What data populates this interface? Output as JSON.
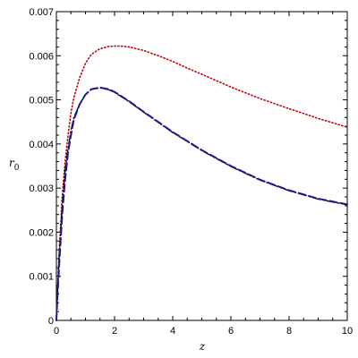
{
  "chart_data": {
    "type": "line",
    "title": "",
    "xlabel": "z",
    "ylabel": {
      "main": "r",
      "sub": "0"
    },
    "xlim": [
      0,
      10
    ],
    "ylim": [
      0,
      0.007
    ],
    "x_ticks": [
      "0",
      "2",
      "4",
      "6",
      "8",
      "10"
    ],
    "y_ticks": [
      "0",
      "0.001",
      "0.002",
      "0.003",
      "0.004",
      "0.005",
      "0.006",
      "0.007"
    ],
    "grid": false,
    "series": [
      {
        "style": "dotted",
        "color": "#c0000c",
        "x": [
          0,
          0.05,
          0.1,
          0.2,
          0.3,
          0.4,
          0.5,
          0.6,
          0.8,
          1.0,
          1.2,
          1.5,
          1.8,
          2.0,
          2.2,
          2.5,
          3.0,
          3.5,
          4.0,
          4.5,
          5.0,
          6.0,
          7.0,
          8.0,
          9.0,
          10.0
        ],
        "y": [
          0,
          0.0009,
          0.0016,
          0.0028,
          0.0036,
          0.0042,
          0.0047,
          0.00505,
          0.0055,
          0.00583,
          0.00603,
          0.00616,
          0.00621,
          0.00622,
          0.00622,
          0.0062,
          0.00612,
          0.006,
          0.00587,
          0.00572,
          0.00558,
          0.00529,
          0.00503,
          0.0048,
          0.00458,
          0.00438
        ]
      },
      {
        "style": "dash-dot",
        "color": "#000000",
        "x": [
          0,
          0.05,
          0.1,
          0.2,
          0.3,
          0.4,
          0.5,
          0.6,
          0.8,
          1.0,
          1.2,
          1.5,
          1.8,
          2.0,
          2.5,
          3.0,
          4.0,
          5.0,
          6.0,
          7.0,
          8.0,
          9.0,
          10.0
        ],
        "y": [
          0,
          0.0008,
          0.0015,
          0.0026,
          0.0034,
          0.0039,
          0.0043,
          0.0046,
          0.0049,
          0.00512,
          0.00524,
          0.00527,
          0.00523,
          0.00517,
          0.00496,
          0.00472,
          0.00426,
          0.00385,
          0.00349,
          0.00318,
          0.00294,
          0.00275,
          0.00262
        ]
      },
      {
        "style": "dashed",
        "color": "#1a1a8c",
        "x": [
          0,
          0.05,
          0.1,
          0.2,
          0.3,
          0.4,
          0.5,
          0.6,
          0.8,
          1.0,
          1.2,
          1.5,
          1.8,
          2.0,
          2.5,
          3.0,
          4.0,
          5.0,
          6.0,
          7.0,
          8.0,
          9.0,
          10.0
        ],
        "y": [
          0,
          0.0007,
          0.0013,
          0.0024,
          0.0032,
          0.0038,
          0.0042,
          0.00455,
          0.0049,
          0.00512,
          0.00524,
          0.00528,
          0.00524,
          0.00518,
          0.00497,
          0.00473,
          0.00427,
          0.00386,
          0.0035,
          0.00319,
          0.00295,
          0.00276,
          0.00263
        ]
      }
    ]
  }
}
